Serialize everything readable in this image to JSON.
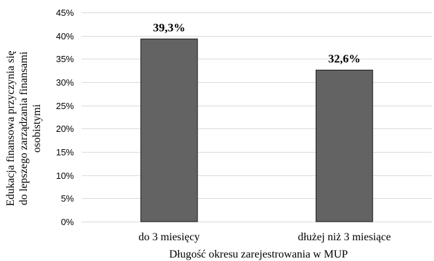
{
  "chart_data": {
    "type": "bar",
    "categories": [
      "do 3 miesięcy",
      "dłużej niż 3 miesiące"
    ],
    "values": [
      39.3,
      32.6
    ],
    "data_labels": [
      "39,3%",
      "32,6%"
    ],
    "xlabel": "Długość okresu zarejestrowania w MUP",
    "ylabel_lines": [
      "Edukacja finansowa przyczynia się",
      "do lepszego zarządzania finansami",
      "osobistymi"
    ],
    "ylim": [
      0,
      45
    ],
    "yticks": [
      0,
      5,
      10,
      15,
      20,
      25,
      30,
      35,
      40,
      45
    ],
    "ytick_labels": [
      "0%",
      "5%",
      "10%",
      "15%",
      "20%",
      "25%",
      "30%",
      "35%",
      "40%",
      "45%"
    ],
    "grid": true,
    "legend": "none",
    "colors": {
      "bar_fill": "#636363",
      "bar_stroke": "#1a1a1a",
      "grid": "#d9d9d9",
      "axis": "#d9d9d9"
    }
  }
}
